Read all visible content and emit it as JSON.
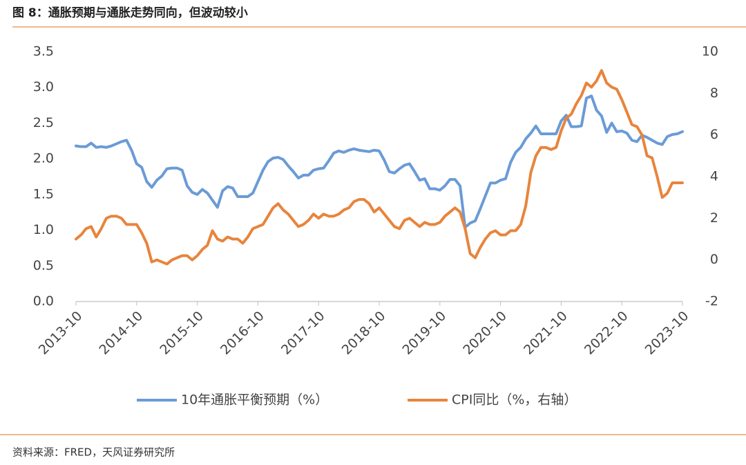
{
  "chart_data": {
    "type": "line",
    "title": "图 8：通胀预期与通胀走势同向，但波动较小",
    "source": "资料来源：FRED，天风证券研究所",
    "x": [
      "2013-10",
      "2013-11",
      "2013-12",
      "2014-01",
      "2014-02",
      "2014-03",
      "2014-04",
      "2014-05",
      "2014-06",
      "2014-07",
      "2014-08",
      "2014-09",
      "2014-10",
      "2014-11",
      "2014-12",
      "2015-01",
      "2015-02",
      "2015-03",
      "2015-04",
      "2015-05",
      "2015-06",
      "2015-07",
      "2015-08",
      "2015-09",
      "2015-10",
      "2015-11",
      "2015-12",
      "2016-01",
      "2016-02",
      "2016-03",
      "2016-04",
      "2016-05",
      "2016-06",
      "2016-07",
      "2016-08",
      "2016-09",
      "2016-10",
      "2016-11",
      "2016-12",
      "2017-01",
      "2017-02",
      "2017-03",
      "2017-04",
      "2017-05",
      "2017-06",
      "2017-07",
      "2017-08",
      "2017-09",
      "2017-10",
      "2017-11",
      "2017-12",
      "2018-01",
      "2018-02",
      "2018-03",
      "2018-04",
      "2018-05",
      "2018-06",
      "2018-07",
      "2018-08",
      "2018-09",
      "2018-10",
      "2018-11",
      "2018-12",
      "2019-01",
      "2019-02",
      "2019-03",
      "2019-04",
      "2019-05",
      "2019-06",
      "2019-07",
      "2019-08",
      "2019-09",
      "2019-10",
      "2019-11",
      "2019-12",
      "2020-01",
      "2020-02",
      "2020-03",
      "2020-04",
      "2020-05",
      "2020-06",
      "2020-07",
      "2020-08",
      "2020-09",
      "2020-10",
      "2020-11",
      "2020-12",
      "2021-01",
      "2021-02",
      "2021-03",
      "2021-04",
      "2021-05",
      "2021-06",
      "2021-07",
      "2021-08",
      "2021-09",
      "2021-10",
      "2021-11",
      "2021-12",
      "2022-01",
      "2022-02",
      "2022-03",
      "2022-04",
      "2022-05",
      "2022-06",
      "2022-07",
      "2022-08",
      "2022-09",
      "2022-10",
      "2022-11",
      "2022-12",
      "2023-01",
      "2023-02",
      "2023-03",
      "2023-04",
      "2023-05",
      "2023-06",
      "2023-07",
      "2023-08",
      "2023-09",
      "2023-10"
    ],
    "xticks": [
      "2013-10",
      "2014-10",
      "2015-10",
      "2016-10",
      "2017-10",
      "2018-10",
      "2019-10",
      "2020-10",
      "2021-10",
      "2022-10",
      "2023-10"
    ],
    "ylim": [
      0,
      3.5
    ],
    "yticks": [
      {
        "value": 0,
        "label": "0.0"
      },
      {
        "value": 0.5,
        "label": "0.5"
      },
      {
        "value": 1,
        "label": "1.0"
      },
      {
        "value": 1.5,
        "label": "1.5"
      },
      {
        "value": 2,
        "label": "2.0"
      },
      {
        "value": 2.5,
        "label": "2.5"
      },
      {
        "value": 3,
        "label": "3.0"
      },
      {
        "value": 3.5,
        "label": "3.5"
      }
    ],
    "y2lim": [
      -2,
      10
    ],
    "y2ticks": [
      -2,
      0,
      2,
      4,
      6,
      8,
      10
    ],
    "grid": false,
    "legend": "bottom",
    "series": [
      {
        "name": "10年通胀平衡预期（%）",
        "color": "#6a9bd6",
        "values": [
          2.18,
          2.17,
          2.17,
          2.22,
          2.16,
          2.17,
          2.16,
          2.18,
          2.21,
          2.24,
          2.26,
          2.12,
          1.93,
          1.88,
          1.68,
          1.6,
          1.7,
          1.76,
          1.86,
          1.87,
          1.87,
          1.84,
          1.62,
          1.53,
          1.5,
          1.57,
          1.52,
          1.42,
          1.32,
          1.55,
          1.61,
          1.59,
          1.47,
          1.47,
          1.47,
          1.52,
          1.68,
          1.84,
          1.96,
          2.01,
          2.02,
          1.99,
          1.9,
          1.82,
          1.73,
          1.77,
          1.77,
          1.84,
          1.86,
          1.87,
          1.97,
          2.08,
          2.11,
          2.09,
          2.12,
          2.14,
          2.12,
          2.11,
          2.1,
          2.12,
          2.11,
          1.98,
          1.82,
          1.8,
          1.86,
          1.91,
          1.93,
          1.82,
          1.7,
          1.72,
          1.58,
          1.58,
          1.56,
          1.62,
          1.71,
          1.71,
          1.62,
          1.04,
          1.1,
          1.13,
          1.3,
          1.48,
          1.66,
          1.66,
          1.7,
          1.72,
          1.95,
          2.09,
          2.16,
          2.28,
          2.36,
          2.46,
          2.35,
          2.35,
          2.35,
          2.35,
          2.53,
          2.61,
          2.45,
          2.45,
          2.46,
          2.85,
          2.88,
          2.68,
          2.6,
          2.37,
          2.5,
          2.38,
          2.39,
          2.36,
          2.26,
          2.24,
          2.33,
          2.3,
          2.26,
          2.22,
          2.2,
          2.31,
          2.34,
          2.35,
          2.38
        ]
      },
      {
        "name": "CPI同比（%，右轴）",
        "color": "#e8843c",
        "axis": "y2",
        "values": [
          1.0,
          1.2,
          1.5,
          1.6,
          1.1,
          1.5,
          2.0,
          2.1,
          2.1,
          2.0,
          1.7,
          1.7,
          1.7,
          1.3,
          0.8,
          -0.1,
          0.0,
          -0.1,
          -0.2,
          0.0,
          0.1,
          0.2,
          0.2,
          0.0,
          0.2,
          0.5,
          0.7,
          1.4,
          1.0,
          0.9,
          1.1,
          1.0,
          1.0,
          0.8,
          1.1,
          1.5,
          1.6,
          1.7,
          2.1,
          2.5,
          2.7,
          2.4,
          2.2,
          1.9,
          1.6,
          1.7,
          1.9,
          2.2,
          2.0,
          2.2,
          2.1,
          2.1,
          2.2,
          2.4,
          2.5,
          2.8,
          2.9,
          2.9,
          2.7,
          2.3,
          2.5,
          2.2,
          1.9,
          1.6,
          1.5,
          1.9,
          2.0,
          1.8,
          1.6,
          1.8,
          1.7,
          1.7,
          1.8,
          2.1,
          2.3,
          2.5,
          2.3,
          1.5,
          0.3,
          0.1,
          0.6,
          1.0,
          1.3,
          1.4,
          1.2,
          1.2,
          1.4,
          1.4,
          1.7,
          2.6,
          4.2,
          5.0,
          5.4,
          5.4,
          5.3,
          5.4,
          6.2,
          6.8,
          7.0,
          7.5,
          7.9,
          8.5,
          8.3,
          8.6,
          9.1,
          8.5,
          8.3,
          8.2,
          7.7,
          7.1,
          6.5,
          6.4,
          6.0,
          5.0,
          4.9,
          4.0,
          3.0,
          3.2,
          3.7,
          3.7,
          3.7
        ]
      }
    ]
  }
}
